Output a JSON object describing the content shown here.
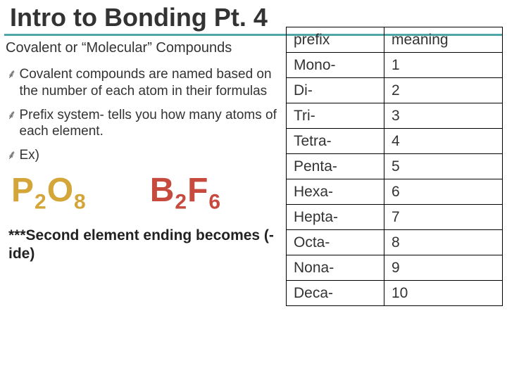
{
  "title": "Intro to Bonding Pt. 4",
  "subtitle": "Covalent or “Molecular” Compounds",
  "bullets": [
    "Covalent compounds are named based on the number of each atom in their formulas",
    "Prefix system- tells you how many atoms of each element.",
    "Ex)"
  ],
  "formulas": [
    {
      "text_parts": [
        "P",
        "2",
        "O",
        "8"
      ],
      "color": "#d4a63a"
    },
    {
      "text_parts": [
        "B",
        "2",
        "F",
        "6"
      ],
      "color": "#c74a3e"
    }
  ],
  "footnote": "***Second element ending becomes (-ide)",
  "table": {
    "header": [
      "prefix",
      "meaning"
    ],
    "rows": [
      [
        "Mono-",
        "1"
      ],
      [
        "Di-",
        "2"
      ],
      [
        "Tri-",
        "3"
      ],
      [
        "Tetra-",
        "4"
      ],
      [
        "Penta-",
        "5"
      ],
      [
        "Hexa-",
        "6"
      ],
      [
        "Hepta-",
        "7"
      ],
      [
        "Octa-",
        "8"
      ],
      [
        "Nona-",
        "9"
      ],
      [
        "Deca-",
        "10"
      ]
    ],
    "border_color": "#000000",
    "cell_fontsize": 21
  },
  "colors": {
    "title_underline": "#4ea6a6",
    "background": "#ffffff"
  }
}
